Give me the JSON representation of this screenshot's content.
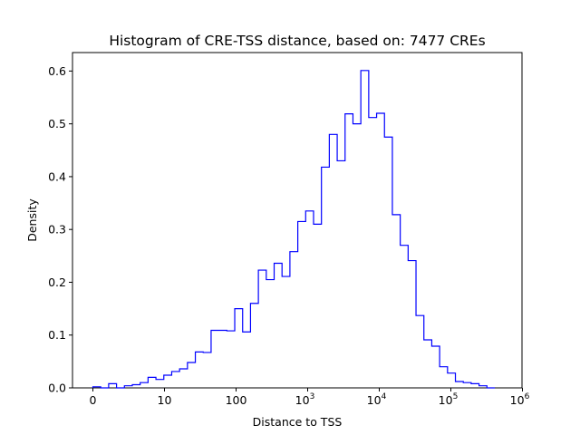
{
  "chart_data": {
    "type": "histogram",
    "title": "Histogram of CRE-TSS distance, based on: 7477 CREs",
    "xlabel": "Distance to TSS",
    "ylabel": "Density",
    "x_scale": "symlog-like (0, 10, 100, 10^3 ... 10^6)",
    "grid": false,
    "legend": "none",
    "series_color": "#0000ff",
    "ylim": [
      0,
      0.635
    ],
    "x_ticks": [
      {
        "label": "0"
      },
      {
        "label": "10"
      },
      {
        "label": "100"
      },
      {
        "base": "10",
        "exp": "3"
      },
      {
        "base": "10",
        "exp": "4"
      },
      {
        "base": "10",
        "exp": "5"
      },
      {
        "base": "10",
        "exp": "6"
      }
    ],
    "y_ticks": [
      "0.0",
      "0.1",
      "0.2",
      "0.3",
      "0.4",
      "0.5",
      "0.6"
    ],
    "densities": [
      0.002,
      0.0,
      0.008,
      0.0,
      0.004,
      0.006,
      0.01,
      0.02,
      0.016,
      0.024,
      0.031,
      0.036,
      0.048,
      0.068,
      0.067,
      0.109,
      0.109,
      0.108,
      0.15,
      0.106,
      0.16,
      0.223,
      0.205,
      0.236,
      0.211,
      0.258,
      0.315,
      0.335,
      0.31,
      0.418,
      0.48,
      0.43,
      0.519,
      0.5,
      0.601,
      0.512,
      0.52,
      0.475,
      0.328,
      0.27,
      0.241,
      0.137,
      0.091,
      0.079,
      0.04,
      0.028,
      0.012,
      0.01,
      0.008,
      0.004,
      0.0
    ]
  }
}
